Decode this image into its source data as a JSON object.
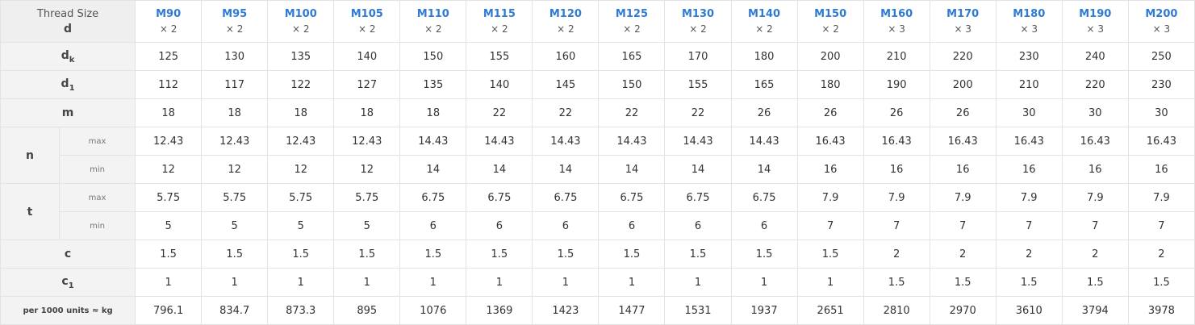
{
  "header": {
    "corner_line1": "Thread Size",
    "corner_line2": "d",
    "sizes": [
      {
        "name": "M90",
        "pitch": "× 2"
      },
      {
        "name": "M95",
        "pitch": "× 2"
      },
      {
        "name": "M100",
        "pitch": "× 2"
      },
      {
        "name": "M105",
        "pitch": "× 2"
      },
      {
        "name": "M110",
        "pitch": "× 2"
      },
      {
        "name": "M115",
        "pitch": "× 2"
      },
      {
        "name": "M120",
        "pitch": "× 2"
      },
      {
        "name": "M125",
        "pitch": "× 2"
      },
      {
        "name": "M130",
        "pitch": "× 2"
      },
      {
        "name": "M140",
        "pitch": "× 2"
      },
      {
        "name": "M150",
        "pitch": "× 2"
      },
      {
        "name": "M160",
        "pitch": "× 3"
      },
      {
        "name": "M170",
        "pitch": "× 3"
      },
      {
        "name": "M180",
        "pitch": "× 3"
      },
      {
        "name": "M190",
        "pitch": "× 3"
      },
      {
        "name": "M200",
        "pitch": "× 3"
      }
    ]
  },
  "rows": [
    {
      "label": "d",
      "sub": "k",
      "values": [
        "125",
        "130",
        "135",
        "140",
        "150",
        "155",
        "160",
        "165",
        "170",
        "180",
        "200",
        "210",
        "220",
        "230",
        "240",
        "250"
      ]
    },
    {
      "label": "d",
      "sub": "1",
      "values": [
        "112",
        "117",
        "122",
        "127",
        "135",
        "140",
        "145",
        "150",
        "155",
        "165",
        "180",
        "190",
        "200",
        "210",
        "220",
        "230"
      ]
    },
    {
      "label": "m",
      "values": [
        "18",
        "18",
        "18",
        "18",
        "18",
        "22",
        "22",
        "22",
        "22",
        "26",
        "26",
        "26",
        "26",
        "30",
        "30",
        "30"
      ]
    },
    {
      "label": "n",
      "qualifier": "max",
      "values": [
        "12.43",
        "12.43",
        "12.43",
        "12.43",
        "14.43",
        "14.43",
        "14.43",
        "14.43",
        "14.43",
        "14.43",
        "16.43",
        "16.43",
        "16.43",
        "16.43",
        "16.43",
        "16.43"
      ]
    },
    {
      "label": "n",
      "qualifier": "min",
      "values": [
        "12",
        "12",
        "12",
        "12",
        "14",
        "14",
        "14",
        "14",
        "14",
        "14",
        "16",
        "16",
        "16",
        "16",
        "16",
        "16"
      ]
    },
    {
      "label": "t",
      "qualifier": "max",
      "values": [
        "5.75",
        "5.75",
        "5.75",
        "5.75",
        "6.75",
        "6.75",
        "6.75",
        "6.75",
        "6.75",
        "6.75",
        "7.9",
        "7.9",
        "7.9",
        "7.9",
        "7.9",
        "7.9"
      ]
    },
    {
      "label": "t",
      "qualifier": "min",
      "values": [
        "5",
        "5",
        "5",
        "5",
        "6",
        "6",
        "6",
        "6",
        "6",
        "6",
        "7",
        "7",
        "7",
        "7",
        "7",
        "7"
      ]
    },
    {
      "label": "c",
      "values": [
        "1.5",
        "1.5",
        "1.5",
        "1.5",
        "1.5",
        "1.5",
        "1.5",
        "1.5",
        "1.5",
        "1.5",
        "1.5",
        "2",
        "2",
        "2",
        "2",
        "2"
      ]
    },
    {
      "label": "c",
      "sub": "1",
      "values": [
        "1",
        "1",
        "1",
        "1",
        "1",
        "1",
        "1",
        "1",
        "1",
        "1",
        "1",
        "1.5",
        "1.5",
        "1.5",
        "1.5",
        "1.5"
      ]
    },
    {
      "label": "per 1000 units ≈ kg",
      "values": [
        "796.1",
        "834.7",
        "873.3",
        "895",
        "1076",
        "1369",
        "1423",
        "1477",
        "1531",
        "1937",
        "2651",
        "2810",
        "2970",
        "3610",
        "3794",
        "3978"
      ]
    }
  ]
}
